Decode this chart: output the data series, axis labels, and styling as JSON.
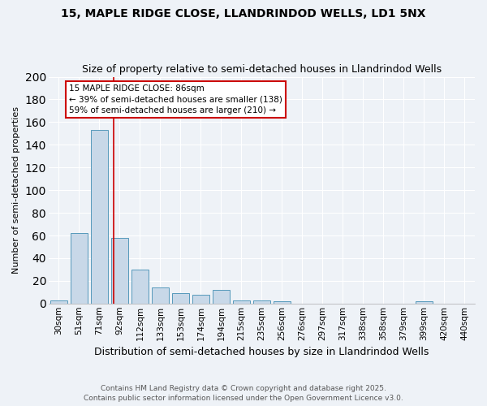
{
  "title1": "15, MAPLE RIDGE CLOSE, LLANDRINDOD WELLS, LD1 5NX",
  "title2": "Size of property relative to semi-detached houses in Llandrindod Wells",
  "xlabel": "Distribution of semi-detached houses by size in Llandrindod Wells",
  "ylabel": "Number of semi-detached properties",
  "categories": [
    "30sqm",
    "51sqm",
    "71sqm",
    "92sqm",
    "112sqm",
    "133sqm",
    "153sqm",
    "174sqm",
    "194sqm",
    "215sqm",
    "235sqm",
    "256sqm",
    "276sqm",
    "297sqm",
    "317sqm",
    "338sqm",
    "358sqm",
    "379sqm",
    "399sqm",
    "420sqm",
    "440sqm"
  ],
  "values": [
    3,
    62,
    153,
    58,
    30,
    14,
    9,
    8,
    12,
    3,
    3,
    2,
    0,
    0,
    0,
    0,
    0,
    0,
    2,
    0,
    0
  ],
  "bar_color": "#c8d8e8",
  "bar_edge_color": "#5599bb",
  "annotation_title": "15 MAPLE RIDGE CLOSE: 86sqm",
  "annotation_line1": "← 39% of semi-detached houses are smaller (138)",
  "annotation_line2": "59% of semi-detached houses are larger (210) →",
  "annotation_box_color": "#ffffff",
  "annotation_box_edge": "#cc0000",
  "vline_color": "#cc0000",
  "vline_x": 2.72,
  "footer1": "Contains HM Land Registry data © Crown copyright and database right 2025.",
  "footer2": "Contains public sector information licensed under the Open Government Licence v3.0.",
  "ylim": [
    0,
    200
  ],
  "yticks": [
    0,
    20,
    40,
    60,
    80,
    100,
    120,
    140,
    160,
    180,
    200
  ],
  "bg_color": "#eef2f7",
  "grid_color": "#ffffff",
  "title_fontsize": 10,
  "subtitle_fontsize": 9,
  "ylabel_fontsize": 8,
  "xlabel_fontsize": 9,
  "tick_fontsize": 7.5,
  "annot_fontsize": 7.5,
  "footer_fontsize": 6.5
}
